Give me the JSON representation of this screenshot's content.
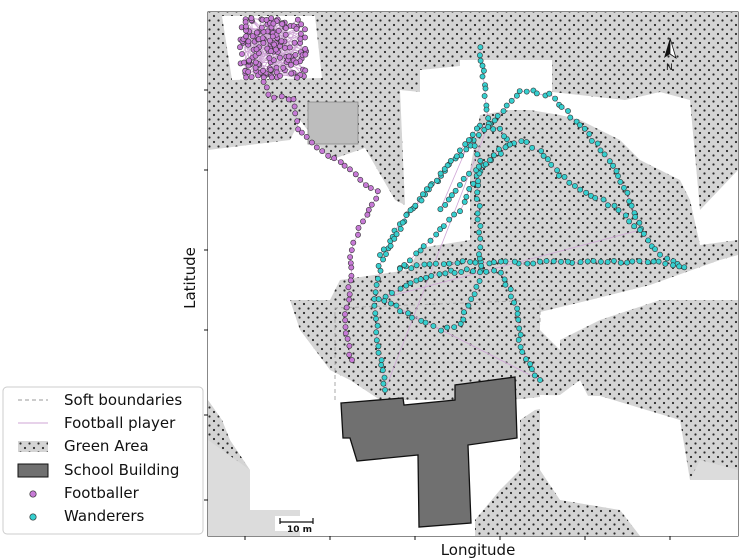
{
  "map": {
    "xlabel": "Longitude",
    "ylabel": "Latitude",
    "scale_label": "10 m",
    "north_label": "N"
  },
  "colors": {
    "green_area_fill": "#d4d4d4",
    "green_area_dot": "#2b2b2b",
    "school_building": "#707070",
    "small_building": "#bdbdbd",
    "footballer": "#c77ad6",
    "wanderers": "#36cfcf",
    "boundary": "#aaaaaa"
  },
  "legend": {
    "items": [
      {
        "key": "soft",
        "label": "Soft boundaries"
      },
      {
        "key": "football",
        "label": "Football player"
      },
      {
        "key": "green",
        "label": "Green Area"
      },
      {
        "key": "school",
        "label": "School Building"
      },
      {
        "key": "footballer",
        "label": "Footballer"
      },
      {
        "key": "wanderers",
        "label": "Wanderers"
      }
    ]
  }
}
